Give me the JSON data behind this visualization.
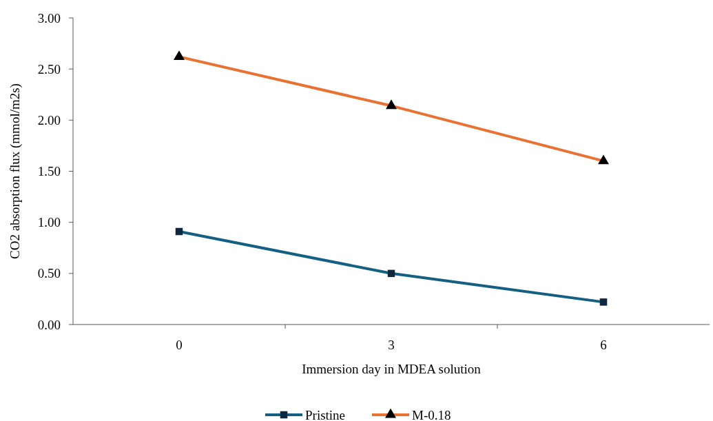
{
  "chart_data": {
    "type": "line",
    "xlabel": "Immersion day in MDEA solution",
    "ylabel": "CO2 absorption flux (mmol/m2s)",
    "categories": [
      "0",
      "3",
      "6"
    ],
    "ylim": [
      0,
      3
    ],
    "yticks": [
      {
        "value": 0,
        "label": "0.00"
      },
      {
        "value": 0.5,
        "label": "0.50"
      },
      {
        "value": 1,
        "label": "1.00"
      },
      {
        "value": 1.5,
        "label": "1.50"
      },
      {
        "value": 2,
        "label": "2.00"
      },
      {
        "value": 2.5,
        "label": "2.50"
      },
      {
        "value": 3,
        "label": "3.00"
      }
    ],
    "grid": false,
    "legend": "bottom",
    "line_style": "solid",
    "series": [
      {
        "name": "Pristine",
        "color": "#156082",
        "marker": "square",
        "values": [
          0.91,
          0.5,
          0.22
        ]
      },
      {
        "name": "M-0.18",
        "color": "#e97132",
        "marker": "triangle",
        "values": [
          2.62,
          2.14,
          1.6
        ]
      }
    ]
  }
}
